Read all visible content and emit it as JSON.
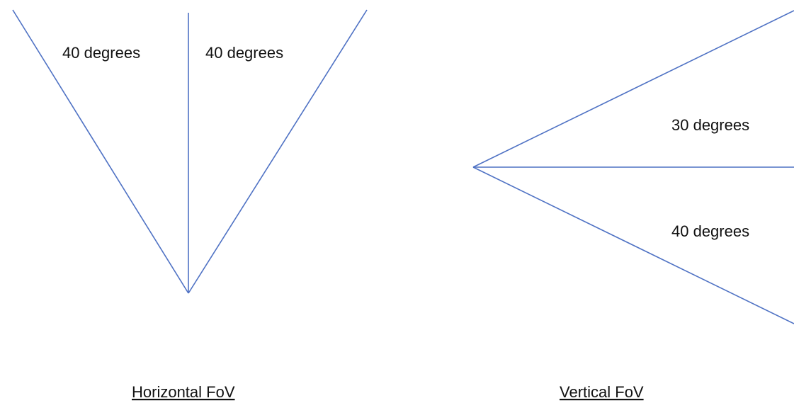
{
  "horizontal_fov": {
    "left_label": "40 degrees",
    "right_label": "40 degrees",
    "caption": "Horizontal FoV"
  },
  "vertical_fov": {
    "upper_label": "30 degrees",
    "lower_label": "40 degrees",
    "caption": "Vertical FoV"
  },
  "colors": {
    "line": "#4f72c4",
    "text": "#111111",
    "background": "#ffffff"
  }
}
